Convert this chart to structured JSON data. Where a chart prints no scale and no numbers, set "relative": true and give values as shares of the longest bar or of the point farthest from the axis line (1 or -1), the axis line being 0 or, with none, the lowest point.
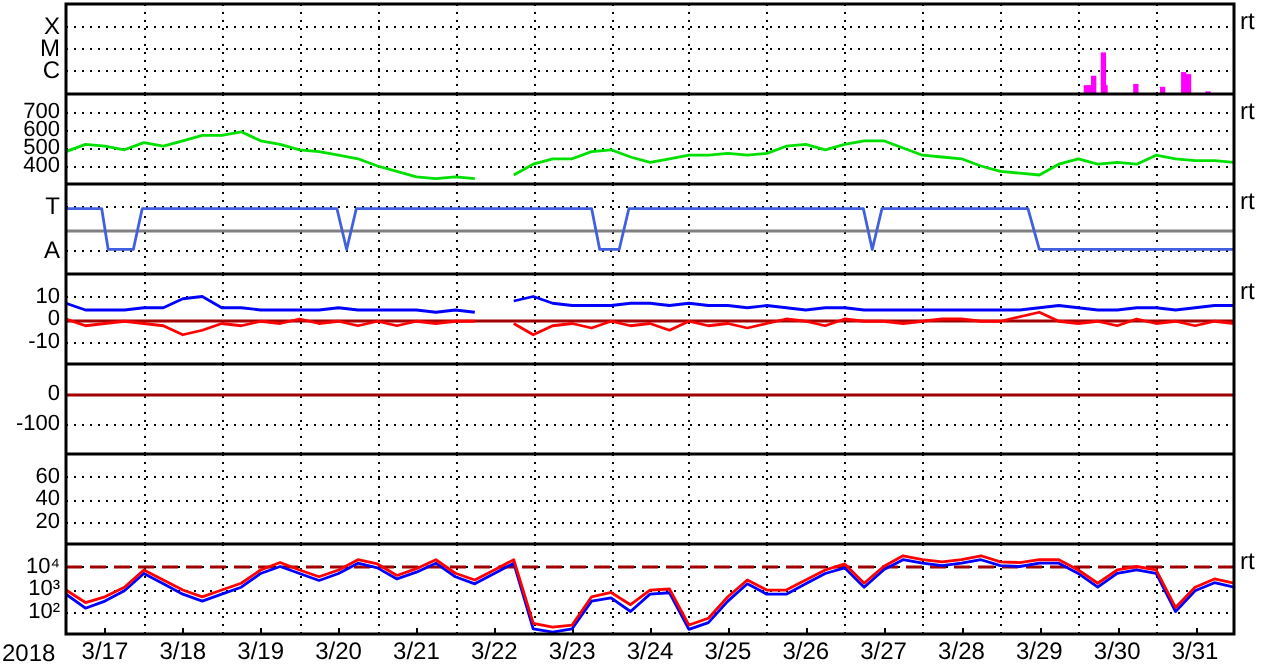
{
  "chart_data": [
    {
      "type": "bar",
      "relative": true,
      "grid": true,
      "tick_labels": "y",
      "annotations": [
        "X",
        "M",
        "C",
        "rt"
      ],
      "xlim": [
        "2018-03-17",
        "2018-04-01"
      ],
      "xticks": [
        {
          "value": "2018-03-18",
          "label": null
        },
        {
          "value": "2018-03-19",
          "label": null
        },
        {
          "value": "2018-03-20",
          "label": null
        },
        {
          "value": "2018-03-21",
          "label": null
        },
        {
          "value": "2018-03-22",
          "label": null
        },
        {
          "value": "2018-03-23",
          "label": null
        },
        {
          "value": "2018-03-24",
          "label": null
        },
        {
          "value": "2018-03-25",
          "label": null
        },
        {
          "value": "2018-03-26",
          "label": null
        },
        {
          "value": "2018-03-27",
          "label": null
        },
        {
          "value": "2018-03-28",
          "label": null
        },
        {
          "value": "2018-03-29",
          "label": null
        },
        {
          "value": "2018-03-30",
          "label": null
        },
        {
          "value": "2018-03-31",
          "label": null
        }
      ],
      "x": [
        "2018-03-30T02:30",
        "2018-03-30T03:30",
        "2018-03-30T04:45",
        "2018-03-30T07:45",
        "2018-03-30T08:15",
        "2018-03-30T17:45",
        "2018-03-31T02:00",
        "2018-03-31T08:30",
        "2018-03-31T10:00",
        "2018-03-31T16:00"
      ],
      "series": [
        {
          "color": "#ff00ff",
          "values": [
            0.2,
            0.2,
            0.43,
            1,
            0.2,
            0.23,
            0.16,
            0.52,
            0.47,
            0.05
          ]
        }
      ]
    },
    {
      "type": "line",
      "grid": true,
      "tick_labels": "y",
      "annotations": [
        "rt"
      ],
      "xlim": [
        "2018-03-17",
        "2018-04-01"
      ],
      "ylim": [
        300,
        800
      ],
      "yticks": [
        700,
        600,
        500,
        400
      ],
      "xticks": [
        {
          "value": "2018-03-18",
          "label": null
        },
        {
          "value": "2018-03-19",
          "label": null
        },
        {
          "value": "2018-03-20",
          "label": null
        },
        {
          "value": "2018-03-21",
          "label": null
        },
        {
          "value": "2018-03-22",
          "label": null
        },
        {
          "value": "2018-03-23",
          "label": null
        },
        {
          "value": "2018-03-24",
          "label": null
        },
        {
          "value": "2018-03-25",
          "label": null
        },
        {
          "value": "2018-03-26",
          "label": null
        },
        {
          "value": "2018-03-27",
          "label": null
        },
        {
          "value": "2018-03-28",
          "label": null
        },
        {
          "value": "2018-03-29",
          "label": null
        },
        {
          "value": "2018-03-30",
          "label": null
        },
        {
          "value": "2018-03-31",
          "label": null
        }
      ],
      "x": [
        "2018-03-17T00:00",
        "2018-03-17T06:00",
        "2018-03-17T12:00",
        "2018-03-17T18:00",
        "2018-03-18T00:00",
        "2018-03-18T06:00",
        "2018-03-18T12:00",
        "2018-03-18T18:00",
        "2018-03-19T00:00",
        "2018-03-19T06:00",
        "2018-03-19T12:00",
        "2018-03-19T18:00",
        "2018-03-20T00:00",
        "2018-03-20T06:00",
        "2018-03-20T12:00",
        "2018-03-20T18:00",
        "2018-03-21T00:00",
        "2018-03-21T06:00",
        "2018-03-21T12:00",
        "2018-03-21T18:00",
        "2018-03-22T00:00",
        "2018-03-22T06:00",
        "2018-03-22T12:00",
        "2018-03-22T18:00",
        "2018-03-23T00:00",
        "2018-03-23T06:00",
        "2018-03-23T12:00",
        "2018-03-23T18:00",
        "2018-03-24T00:00",
        "2018-03-24T06:00",
        "2018-03-24T12:00",
        "2018-03-24T18:00",
        "2018-03-25T00:00",
        "2018-03-25T06:00",
        "2018-03-25T12:00",
        "2018-03-25T18:00",
        "2018-03-26T00:00",
        "2018-03-26T06:00",
        "2018-03-26T12:00",
        "2018-03-26T18:00",
        "2018-03-27T00:00",
        "2018-03-27T06:00",
        "2018-03-27T12:00",
        "2018-03-27T18:00",
        "2018-03-28T00:00",
        "2018-03-28T06:00",
        "2018-03-28T12:00",
        "2018-03-28T18:00",
        "2018-03-29T00:00",
        "2018-03-29T06:00",
        "2018-03-29T12:00",
        "2018-03-29T18:00",
        "2018-03-30T00:00",
        "2018-03-30T06:00",
        "2018-03-30T12:00",
        "2018-03-30T18:00",
        "2018-03-31T00:00",
        "2018-03-31T06:00",
        "2018-03-31T12:00",
        "2018-03-31T18:00",
        "2018-04-01T00:00"
      ],
      "series": [
        {
          "color": "#00e000",
          "values": [
            480,
            520,
            510,
            490,
            530,
            510,
            540,
            570,
            570,
            590,
            540,
            520,
            490,
            480,
            460,
            440,
            400,
            370,
            340,
            330,
            340,
            330,
            null,
            350,
            410,
            440,
            440,
            480,
            490,
            450,
            420,
            440,
            460,
            460,
            470,
            460,
            470,
            510,
            520,
            490,
            520,
            540,
            540,
            500,
            460,
            450,
            440,
            400,
            370,
            360,
            350,
            410,
            440,
            410,
            420,
            410,
            460,
            440,
            430,
            430,
            420
          ]
        }
      ]
    },
    {
      "type": "line",
      "relative": true,
      "grid": true,
      "tick_labels": "y",
      "annotations": [
        "T",
        "A",
        "rt"
      ],
      "xlim": [
        "2018-03-17",
        "2018-04-01"
      ],
      "xticks": [
        {
          "value": "2018-03-18",
          "label": null
        },
        {
          "value": "2018-03-19",
          "label": null
        },
        {
          "value": "2018-03-20",
          "label": null
        },
        {
          "value": "2018-03-21",
          "label": null
        },
        {
          "value": "2018-03-22",
          "label": null
        },
        {
          "value": "2018-03-23",
          "label": null
        },
        {
          "value": "2018-03-24",
          "label": null
        },
        {
          "value": "2018-03-25",
          "label": null
        },
        {
          "value": "2018-03-26",
          "label": null
        },
        {
          "value": "2018-03-27",
          "label": null
        },
        {
          "value": "2018-03-28",
          "label": null
        },
        {
          "value": "2018-03-29",
          "label": null
        },
        {
          "value": "2018-03-30",
          "label": null
        },
        {
          "value": "2018-03-31",
          "label": null
        }
      ],
      "series": [
        {
          "color": "#4060e0",
          "x": [
            "2018-03-17T00:00",
            "2018-03-17T11:00",
            "2018-03-17T13:00",
            "2018-03-17T20:45",
            "2018-03-17T23:30",
            "2018-03-20T11:30",
            "2018-03-20T14:30",
            "2018-03-20T17:30",
            "2018-03-23T18:00",
            "2018-03-23T20:30",
            "2018-03-24T02:30",
            "2018-03-24T05:30",
            "2018-03-27T05:45",
            "2018-03-27T08:30",
            "2018-03-27T11:30",
            "2018-03-29T08:30",
            "2018-03-29T12:00",
            "2018-04-01T00:00"
          ],
          "values": [
            1,
            1,
            -1,
            -1,
            1,
            1,
            -1,
            1,
            1,
            -1,
            -1,
            1,
            1,
            -1,
            1,
            1,
            -1,
            -1
          ]
        }
      ]
    },
    {
      "type": "line",
      "grid": true,
      "tick_labels": "y",
      "annotations": [
        "rt"
      ],
      "xlim": [
        "2018-03-17",
        "2018-04-01"
      ],
      "ylim": [
        -20,
        20
      ],
      "yticks": [
        10,
        0,
        -10
      ],
      "ref_lines": [
        {
          "axis": "y",
          "value": 0,
          "color": "#a00000"
        }
      ],
      "xticks": [
        {
          "value": "2018-03-18",
          "label": null
        },
        {
          "value": "2018-03-19",
          "label": null
        },
        {
          "value": "2018-03-20",
          "label": null
        },
        {
          "value": "2018-03-21",
          "label": null
        },
        {
          "value": "2018-03-22",
          "label": null
        },
        {
          "value": "2018-03-23",
          "label": null
        },
        {
          "value": "2018-03-24",
          "label": null
        },
        {
          "value": "2018-03-25",
          "label": null
        },
        {
          "value": "2018-03-26",
          "label": null
        },
        {
          "value": "2018-03-27",
          "label": null
        },
        {
          "value": "2018-03-28",
          "label": null
        },
        {
          "value": "2018-03-29",
          "label": null
        },
        {
          "value": "2018-03-30",
          "label": null
        },
        {
          "value": "2018-03-31",
          "label": null
        }
      ],
      "x": [
        "2018-03-17T00:00",
        "2018-03-17T06:00",
        "2018-03-17T12:00",
        "2018-03-17T18:00",
        "2018-03-18T00:00",
        "2018-03-18T06:00",
        "2018-03-18T12:00",
        "2018-03-18T18:00",
        "2018-03-19T00:00",
        "2018-03-19T06:00",
        "2018-03-19T12:00",
        "2018-03-19T18:00",
        "2018-03-20T00:00",
        "2018-03-20T06:00",
        "2018-03-20T12:00",
        "2018-03-20T18:00",
        "2018-03-21T00:00",
        "2018-03-21T06:00",
        "2018-03-21T12:00",
        "2018-03-21T18:00",
        "2018-03-22T00:00",
        "2018-03-22T06:00",
        "2018-03-22T12:00",
        "2018-03-22T18:00",
        "2018-03-23T00:00",
        "2018-03-23T06:00",
        "2018-03-23T12:00",
        "2018-03-23T18:00",
        "2018-03-24T00:00",
        "2018-03-24T06:00",
        "2018-03-24T12:00",
        "2018-03-24T18:00",
        "2018-03-25T00:00",
        "2018-03-25T06:00",
        "2018-03-25T12:00",
        "2018-03-25T18:00",
        "2018-03-26T00:00",
        "2018-03-26T06:00",
        "2018-03-26T12:00",
        "2018-03-26T18:00",
        "2018-03-27T00:00",
        "2018-03-27T06:00",
        "2018-03-27T12:00",
        "2018-03-27T18:00",
        "2018-03-28T00:00",
        "2018-03-28T06:00",
        "2018-03-28T12:00",
        "2018-03-28T18:00",
        "2018-03-29T00:00",
        "2018-03-29T06:00",
        "2018-03-29T12:00",
        "2018-03-29T18:00",
        "2018-03-30T00:00",
        "2018-03-30T06:00",
        "2018-03-30T12:00",
        "2018-03-30T18:00",
        "2018-03-31T00:00",
        "2018-03-31T06:00",
        "2018-03-31T12:00",
        "2018-03-31T18:00",
        "2018-04-01T00:00"
      ],
      "series": [
        {
          "color": "#0000ff",
          "values": [
            7,
            4,
            4,
            4,
            5,
            5,
            9,
            10,
            5,
            5,
            4,
            4,
            4,
            4,
            5,
            4,
            4,
            4,
            4,
            3,
            4,
            3,
            null,
            8,
            10,
            7,
            6,
            6,
            6,
            7,
            7,
            6,
            7,
            6,
            6,
            5,
            6,
            5,
            4,
            5,
            5,
            4,
            4,
            4,
            4,
            4,
            4,
            4,
            4,
            4,
            5,
            6,
            5,
            4,
            4,
            5,
            5,
            4,
            5,
            6,
            6
          ]
        },
        {
          "color": "#ff0000",
          "values": [
            0,
            -3,
            -2,
            -1,
            -2,
            -3,
            -7,
            -5,
            -2,
            -3,
            -1,
            -2,
            0,
            -2,
            -1,
            -3,
            -1,
            -3,
            -1,
            -2,
            -1,
            -1,
            null,
            -2,
            -7,
            -3,
            -2,
            -4,
            -1,
            -3,
            -2,
            -5,
            -1,
            -3,
            -2,
            -4,
            -2,
            0,
            -1,
            -3,
            0,
            -1,
            -1,
            -2,
            -1,
            0,
            0,
            -1,
            -1,
            1,
            3,
            -1,
            -2,
            -1,
            -3,
            0,
            -2,
            -1,
            -3,
            -1,
            -2
          ]
        }
      ]
    },
    {
      "type": "line",
      "grid": true,
      "tick_labels": "y",
      "xlim": [
        "2018-03-17",
        "2018-04-01"
      ],
      "ylim": [
        -200,
        100
      ],
      "yticks": [
        0,
        -100
      ],
      "ref_lines": [
        {
          "axis": "y",
          "value": 0,
          "color": "#a00000"
        }
      ],
      "xticks": [
        {
          "value": "2018-03-18",
          "label": null
        },
        {
          "value": "2018-03-19",
          "label": null
        },
        {
          "value": "2018-03-20",
          "label": null
        },
        {
          "value": "2018-03-21",
          "label": null
        },
        {
          "value": "2018-03-22",
          "label": null
        },
        {
          "value": "2018-03-23",
          "label": null
        },
        {
          "value": "2018-03-24",
          "label": null
        },
        {
          "value": "2018-03-25",
          "label": null
        },
        {
          "value": "2018-03-26",
          "label": null
        },
        {
          "value": "2018-03-27",
          "label": null
        },
        {
          "value": "2018-03-28",
          "label": null
        },
        {
          "value": "2018-03-29",
          "label": null
        },
        {
          "value": "2018-03-30",
          "label": null
        },
        {
          "value": "2018-03-31",
          "label": null
        }
      ]
    },
    {
      "type": "line",
      "grid": true,
      "tick_labels": "y",
      "xlim": [
        "2018-03-17",
        "2018-04-01"
      ],
      "ylim": [
        0,
        80
      ],
      "yticks": [
        60,
        40,
        20
      ],
      "xticks": [
        {
          "value": "2018-03-18",
          "label": null
        },
        {
          "value": "2018-03-19",
          "label": null
        },
        {
          "value": "2018-03-20",
          "label": null
        },
        {
          "value": "2018-03-21",
          "label": null
        },
        {
          "value": "2018-03-22",
          "label": null
        },
        {
          "value": "2018-03-23",
          "label": null
        },
        {
          "value": "2018-03-24",
          "label": null
        },
        {
          "value": "2018-03-25",
          "label": null
        },
        {
          "value": "2018-03-26",
          "label": null
        },
        {
          "value": "2018-03-27",
          "label": null
        },
        {
          "value": "2018-03-28",
          "label": null
        },
        {
          "value": "2018-03-29",
          "label": null
        },
        {
          "value": "2018-03-30",
          "label": null
        },
        {
          "value": "2018-03-31",
          "label": null
        }
      ]
    },
    {
      "type": "line",
      "log": true,
      "grid": true,
      "xlabel": "2018",
      "annotations": [
        "rt"
      ],
      "xlim": [
        "2018-03-17",
        "2018-04-01"
      ],
      "ylim": [
        10,
        100000
      ],
      "yticks": [
        {
          "value": 10000,
          "label": "10⁴"
        },
        {
          "value": 1000,
          "label": "10³"
        },
        {
          "value": 100,
          "label": "10²"
        }
      ],
      "ref_lines": [
        {
          "axis": "y",
          "value": 10000,
          "color": "#a00000",
          "line_style": "dashed"
        }
      ],
      "xticks": [
        {
          "value": "2018-03-17T12:00",
          "label": "3/17"
        },
        {
          "value": "2018-03-18",
          "label": null
        },
        {
          "value": "2018-03-18T12:00",
          "label": "3/18"
        },
        {
          "value": "2018-03-19",
          "label": null
        },
        {
          "value": "2018-03-19T12:00",
          "label": "3/19"
        },
        {
          "value": "2018-03-20",
          "label": null
        },
        {
          "value": "2018-03-20T12:00",
          "label": "3/20"
        },
        {
          "value": "2018-03-21",
          "label": null
        },
        {
          "value": "2018-03-21T12:00",
          "label": "3/21"
        },
        {
          "value": "2018-03-22",
          "label": null
        },
        {
          "value": "2018-03-22T12:00",
          "label": "3/22"
        },
        {
          "value": "2018-03-23",
          "label": null
        },
        {
          "value": "2018-03-23T12:00",
          "label": "3/23"
        },
        {
          "value": "2018-03-24",
          "label": null
        },
        {
          "value": "2018-03-24T12:00",
          "label": "3/24"
        },
        {
          "value": "2018-03-25",
          "label": null
        },
        {
          "value": "2018-03-25T12:00",
          "label": "3/25"
        },
        {
          "value": "2018-03-26",
          "label": null
        },
        {
          "value": "2018-03-26T12:00",
          "label": "3/26"
        },
        {
          "value": "2018-03-27",
          "label": null
        },
        {
          "value": "2018-03-27T12:00",
          "label": "3/27"
        },
        {
          "value": "2018-03-28",
          "label": null
        },
        {
          "value": "2018-03-28T12:00",
          "label": "3/28"
        },
        {
          "value": "2018-03-29",
          "label": null
        },
        {
          "value": "2018-03-29T12:00",
          "label": "3/29"
        },
        {
          "value": "2018-03-30",
          "label": null
        },
        {
          "value": "2018-03-30T12:00",
          "label": "3/30"
        },
        {
          "value": "2018-03-31",
          "label": null
        },
        {
          "value": "2018-03-31T12:00",
          "label": "3/31"
        }
      ],
      "x": [
        "2018-03-17T00:00",
        "2018-03-17T06:00",
        "2018-03-17T12:00",
        "2018-03-17T18:00",
        "2018-03-18T00:00",
        "2018-03-18T06:00",
        "2018-03-18T12:00",
        "2018-03-18T18:00",
        "2018-03-19T00:00",
        "2018-03-19T06:00",
        "2018-03-19T12:00",
        "2018-03-19T18:00",
        "2018-03-20T00:00",
        "2018-03-20T06:00",
        "2018-03-20T12:00",
        "2018-03-20T18:00",
        "2018-03-21T00:00",
        "2018-03-21T06:00",
        "2018-03-21T12:00",
        "2018-03-21T18:00",
        "2018-03-22T00:00",
        "2018-03-22T06:00",
        "2018-03-22T12:00",
        "2018-03-22T18:00",
        "2018-03-23T00:00",
        "2018-03-23T06:00",
        "2018-03-23T12:00",
        "2018-03-23T18:00",
        "2018-03-24T00:00",
        "2018-03-24T06:00",
        "2018-03-24T12:00",
        "2018-03-24T18:00",
        "2018-03-25T00:00",
        "2018-03-25T06:00",
        "2018-03-25T12:00",
        "2018-03-25T18:00",
        "2018-03-26T00:00",
        "2018-03-26T06:00",
        "2018-03-26T12:00",
        "2018-03-26T18:00",
        "2018-03-27T00:00",
        "2018-03-27T06:00",
        "2018-03-27T12:00",
        "2018-03-27T18:00",
        "2018-03-28T00:00",
        "2018-03-28T06:00",
        "2018-03-28T12:00",
        "2018-03-28T18:00",
        "2018-03-29T00:00",
        "2018-03-29T06:00",
        "2018-03-29T12:00",
        "2018-03-29T18:00",
        "2018-03-30T00:00",
        "2018-03-30T06:00",
        "2018-03-30T12:00",
        "2018-03-30T18:00",
        "2018-03-31T00:00",
        "2018-03-31T06:00",
        "2018-03-31T12:00",
        "2018-03-31T18:00",
        "2018-04-01T00:00"
      ],
      "series": [
        {
          "color": "#ff0000",
          "values": [
            900,
            250,
            450,
            1200,
            7000,
            2500,
            900,
            450,
            900,
            1800,
            7000,
            15000,
            7000,
            3500,
            7000,
            20000,
            13000,
            4000,
            8000,
            20000,
            5000,
            2500,
            7000,
            20000,
            30,
            20,
            25,
            450,
            700,
            200,
            900,
            1000,
            25,
            50,
            450,
            2500,
            900,
            900,
            2500,
            7000,
            13000,
            1800,
            10000,
            30000,
            20000,
            16000,
            20000,
            30000,
            16000,
            15000,
            20000,
            20000,
            7000,
            1800,
            7000,
            10000,
            7000,
            150,
            1200,
            2800,
            1800
          ]
        },
        {
          "color": "#0000ff",
          "values": [
            590,
            140,
            290,
            830,
            4900,
            1700,
            590,
            290,
            590,
            1200,
            4900,
            10000,
            4900,
            2400,
            4900,
            14000,
            8700,
            2800,
            5600,
            14000,
            3500,
            1700,
            4900,
            14000,
            17,
            12,
            17,
            290,
            400,
            100,
            590,
            680,
            16,
            32,
            290,
            1700,
            590,
            590,
            1700,
            4900,
            8700,
            1200,
            7100,
            20000,
            14000,
            11000,
            14000,
            20000,
            11000,
            10000,
            14000,
            14000,
            4900,
            1200,
            4900,
            7100,
            4900,
            100,
            830,
            1900,
            1200
          ]
        }
      ]
    }
  ]
}
